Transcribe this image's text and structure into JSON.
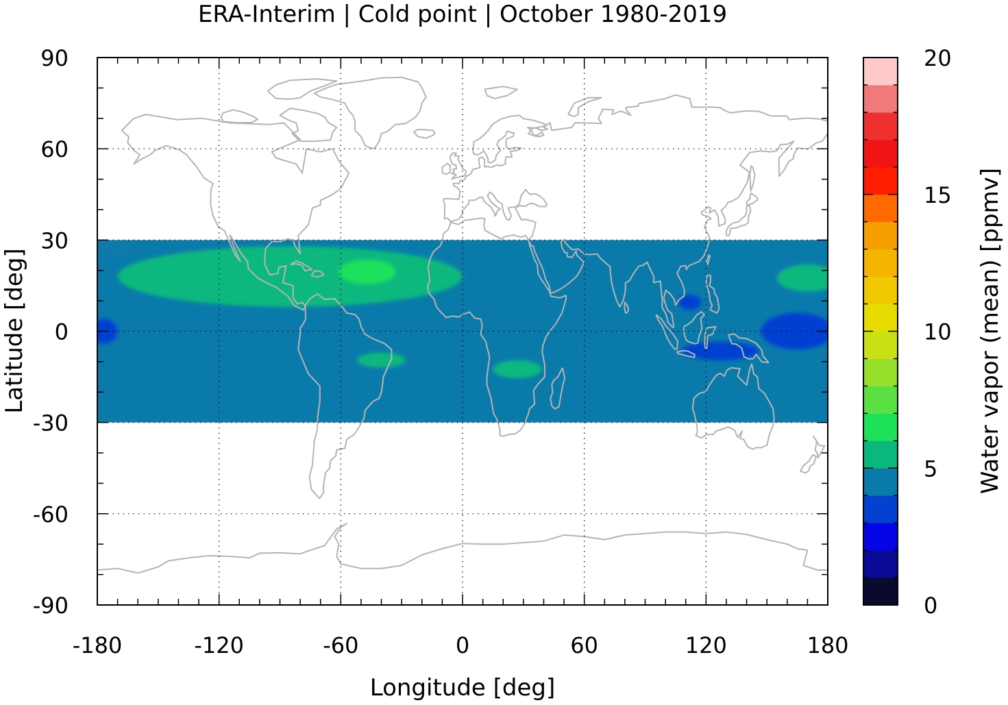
{
  "chart_data": {
    "type": "heatmap",
    "title": "ERA-Interim | Cold point | October 1980-2019",
    "xlabel": "Longitude [deg]",
    "ylabel": "Latitude [deg]",
    "colorbar_label": "Water vapor (mean) [ppmv]",
    "xlim": [
      -180,
      180
    ],
    "ylim": [
      -90,
      90
    ],
    "x_ticks": [
      -180,
      -120,
      -60,
      0,
      60,
      120,
      180
    ],
    "x_tick_labels": [
      "-180",
      "-120",
      "-60",
      "0",
      "60",
      "120",
      "180"
    ],
    "y_ticks": [
      90,
      60,
      30,
      0,
      -30,
      -60,
      -90
    ],
    "y_tick_labels": [
      "90",
      "60",
      "30",
      "0",
      "-30",
      "-60",
      "-90"
    ],
    "grid": true,
    "colorbar": {
      "range": [
        0,
        20
      ],
      "ticks": [
        0,
        5,
        10,
        15,
        20
      ],
      "tick_labels": [
        "0",
        "5",
        "10",
        "15",
        "20"
      ],
      "colors": [
        "#0a0a2e",
        "#0a0a96",
        "#0404e6",
        "#0541d1",
        "#0a7aab",
        "#0ab87e",
        "#1ee15a",
        "#5ae042",
        "#96e02b",
        "#c8e014",
        "#e6dc00",
        "#f0c800",
        "#f5b400",
        "#f5a000",
        "#ff6a00",
        "#ff1e00",
        "#f01414",
        "#f03030",
        "#f07a7a",
        "#ffcaca"
      ]
    },
    "data_region": {
      "lat_min": -30,
      "lat_max": 30,
      "background_value": 4.6
    },
    "field_regions": [
      {
        "name": "pacific-east-atlantic-band",
        "value": 5.5,
        "lon_center": -85,
        "lat_center": 18,
        "lon_half_width": 85,
        "lat_half_width": 10
      },
      {
        "name": "caribbean-atlantic-max",
        "value": 6.3,
        "lon_center": -47,
        "lat_center": 19.5,
        "lon_half_width": 14,
        "lat_half_width": 4
      },
      {
        "name": "west-pacific-north",
        "value": 5.5,
        "lon_center": 170,
        "lat_center": 17.5,
        "lon_half_width": 15,
        "lat_half_width": 4.5
      },
      {
        "name": "brazil-tropics",
        "value": 5.5,
        "lon_center": -40,
        "lat_center": -9.5,
        "lon_half_width": 12,
        "lat_half_width": 2.5
      },
      {
        "name": "southern-africa",
        "value": 5.5,
        "lon_center": 27,
        "lat_center": -12.5,
        "lon_half_width": 12,
        "lat_half_width": 3
      },
      {
        "name": "maritime-continent-min",
        "value": 3.8,
        "lon_center": 127,
        "lat_center": -6.5,
        "lon_half_width": 19,
        "lat_half_width": 3
      },
      {
        "name": "south-china-sea-min",
        "value": 3.8,
        "lon_center": 112,
        "lat_center": 9.5,
        "lon_half_width": 5.5,
        "lat_half_width": 2.5
      },
      {
        "name": "central-pacific-min",
        "value": 3.8,
        "lon_center": 165,
        "lat_center": 0,
        "lon_half_width": 18,
        "lat_half_width": 6
      },
      {
        "name": "dateline-west-min",
        "value": 3.8,
        "lon_center": -177,
        "lat_center": 0,
        "lon_half_width": 7,
        "lat_half_width": 4
      },
      {
        "name": "east-pacific-north-min",
        "value": 4.6,
        "lon_center": -172,
        "lat_center": 27,
        "lon_half_width": 10,
        "lat_half_width": 3
      }
    ]
  }
}
